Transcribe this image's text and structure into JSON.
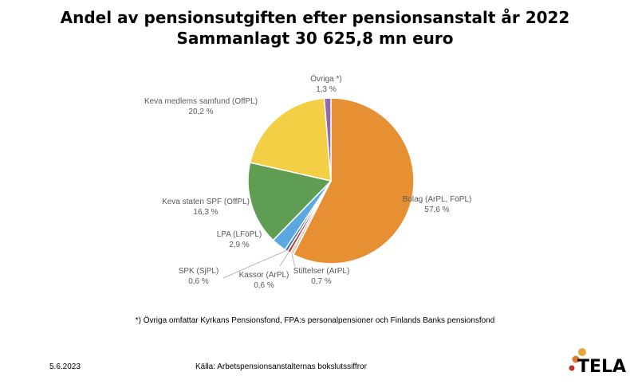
{
  "title": "Andel av pensionsutgiften efter pensionsanstalt år 2022",
  "subtitle": "Sammanlagt 30 625,8 mn euro",
  "chart_data": {
    "type": "pie",
    "title": "Andel av pensionsutgiften efter pensionsanstalt år 2022",
    "subtitle": "Sammanlagt 30 625,8 mn euro",
    "slices": [
      {
        "name": "Bolag (ArPL, FöPL)",
        "value": 57.6,
        "label": "57,6 %",
        "color": "#E68F33"
      },
      {
        "name": "Stiftelser (ArPL)",
        "value": 0.7,
        "label": "0,7 %",
        "color": "#D9D2C3"
      },
      {
        "name": "Kassor (ArPL)",
        "value": 0.6,
        "label": "0,6 %",
        "color": "#C0322E"
      },
      {
        "name": "SPK (SjPL)",
        "value": 0.6,
        "label": "0,6 %",
        "color": "#2E75B6"
      },
      {
        "name": "LPA (LFöPL)",
        "value": 2.9,
        "label": "2,9 %",
        "color": "#5BA8E0"
      },
      {
        "name": "Keva staten SPF (OffPL)",
        "value": 16.3,
        "label": "16,3 %",
        "color": "#5F9E52"
      },
      {
        "name": "Keva medlems samfund (OffPL)",
        "value": 20.2,
        "label": "20,2 %",
        "color": "#F2CF45"
      },
      {
        "name": "Övriga *)",
        "value": 1.3,
        "label": "1,3 %",
        "color": "#8E6AAE"
      }
    ]
  },
  "footnote": "*) Övriga omfattar Kyrkans Pensionsfond, FPA:s personalpensioner och Finlands Banks pensionsfond",
  "date": "5.6.2023",
  "source": "Källa: Arbetspensionsanstalternas bokslutssiffror",
  "logo_text": "TELA",
  "logo_colors": [
    "#E8A33A",
    "#E07A2C",
    "#C0322E"
  ]
}
